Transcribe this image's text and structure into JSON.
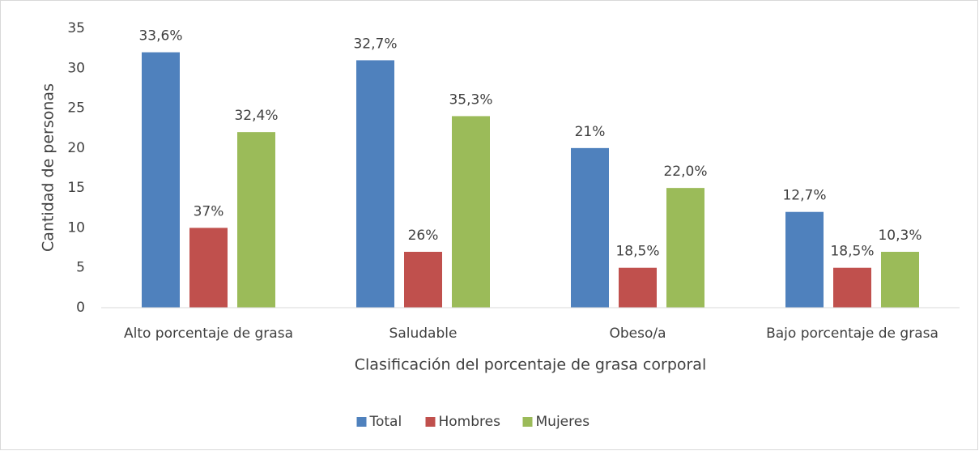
{
  "chart_data": {
    "type": "bar",
    "x_label": "Clasificación del porcentaje de grasa corporal",
    "y_label": "Cantidad de personas",
    "categories": [
      "Alto porcentaje de grasa",
      "Saludable",
      "Obeso/a",
      "Bajo porcentaje de grasa"
    ],
    "series": [
      {
        "name": "Total",
        "color": "#4f81bd",
        "values": [
          32,
          31,
          20,
          12
        ],
        "annotations": [
          "33,6%",
          "32,7%",
          "21%",
          "12,7%"
        ]
      },
      {
        "name": "Hombres",
        "color": "#c0504d",
        "values": [
          10,
          7,
          5,
          5
        ],
        "annotations": [
          "37%",
          "26%",
          "18,5%",
          "18,5%"
        ]
      },
      {
        "name": "Mujeres",
        "color": "#9bbb59",
        "values": [
          22,
          24,
          15,
          7
        ],
        "annotations": [
          "32,4%",
          "35,3%",
          "22,0%",
          "10,3%"
        ]
      }
    ],
    "ylim": [
      0,
      35
    ],
    "yticks": [
      0,
      5,
      10,
      15,
      20,
      25,
      30,
      35
    ],
    "grid": false,
    "legend": "bottom"
  }
}
